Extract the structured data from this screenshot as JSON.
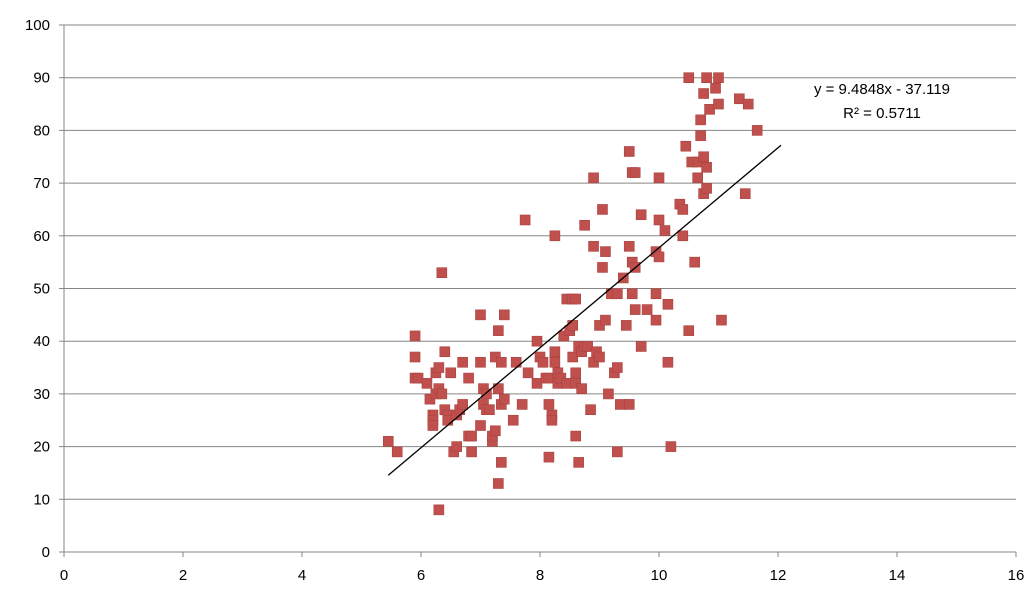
{
  "chart_data": {
    "type": "scatter",
    "title": "",
    "xlabel": "",
    "ylabel": "",
    "xlim": [
      0,
      16
    ],
    "ylim": [
      0,
      100
    ],
    "x_ticks": [
      "0",
      "2",
      "4",
      "6",
      "8",
      "10",
      "12",
      "14",
      "16"
    ],
    "y_ticks": [
      "0",
      "10",
      "20",
      "30",
      "40",
      "50",
      "60",
      "70",
      "80",
      "90",
      "100"
    ],
    "grid": "horizontal",
    "legend": "none",
    "marker_color": "#c0504d",
    "trendline": {
      "type": "linear",
      "slope": 9.4848,
      "intercept": -37.119,
      "x_range": [
        5.45,
        12.05
      ],
      "color": "#000000",
      "equation_label": "y = 9.4848x - 37.119",
      "r2_label": "R² = 0.5711"
    },
    "points": [
      [
        5.45,
        21
      ],
      [
        5.6,
        19
      ],
      [
        5.9,
        41
      ],
      [
        5.9,
        37
      ],
      [
        5.9,
        33
      ],
      [
        5.95,
        33
      ],
      [
        6.1,
        32
      ],
      [
        6.15,
        29
      ],
      [
        6.2,
        26
      ],
      [
        6.2,
        25
      ],
      [
        6.2,
        24
      ],
      [
        6.25,
        30
      ],
      [
        6.25,
        34
      ],
      [
        6.3,
        35
      ],
      [
        6.3,
        31
      ],
      [
        6.3,
        8
      ],
      [
        6.35,
        30
      ],
      [
        6.35,
        53
      ],
      [
        6.4,
        38
      ],
      [
        6.4,
        27
      ],
      [
        6.45,
        26
      ],
      [
        6.45,
        25
      ],
      [
        6.5,
        34
      ],
      [
        6.55,
        19
      ],
      [
        6.6,
        20
      ],
      [
        6.6,
        26
      ],
      [
        6.65,
        27
      ],
      [
        6.7,
        36
      ],
      [
        6.7,
        28
      ],
      [
        6.8,
        33
      ],
      [
        6.8,
        22
      ],
      [
        6.85,
        19
      ],
      [
        6.85,
        22
      ],
      [
        7.0,
        45
      ],
      [
        7.0,
        36
      ],
      [
        7.0,
        24
      ],
      [
        7.05,
        31
      ],
      [
        7.05,
        28
      ],
      [
        7.1,
        30
      ],
      [
        7.1,
        27
      ],
      [
        7.15,
        27
      ],
      [
        7.2,
        21
      ],
      [
        7.2,
        22
      ],
      [
        7.25,
        23
      ],
      [
        7.25,
        37
      ],
      [
        7.3,
        31
      ],
      [
        7.3,
        42
      ],
      [
        7.3,
        13
      ],
      [
        7.35,
        17
      ],
      [
        7.35,
        36
      ],
      [
        7.35,
        28
      ],
      [
        7.4,
        45
      ],
      [
        7.4,
        29
      ],
      [
        7.55,
        25
      ],
      [
        7.6,
        36
      ],
      [
        7.7,
        28
      ],
      [
        7.75,
        63
      ],
      [
        7.8,
        34
      ],
      [
        7.95,
        40
      ],
      [
        7.95,
        32
      ],
      [
        8.0,
        37
      ],
      [
        8.05,
        36
      ],
      [
        8.1,
        33
      ],
      [
        8.15,
        33
      ],
      [
        8.15,
        28
      ],
      [
        8.15,
        18
      ],
      [
        8.2,
        26
      ],
      [
        8.2,
        25
      ],
      [
        8.25,
        60
      ],
      [
        8.25,
        38
      ],
      [
        8.25,
        36
      ],
      [
        8.3,
        34
      ],
      [
        8.3,
        32
      ],
      [
        8.35,
        33
      ],
      [
        8.4,
        41
      ],
      [
        8.45,
        48
      ],
      [
        8.45,
        32
      ],
      [
        8.5,
        42
      ],
      [
        8.55,
        48
      ],
      [
        8.55,
        37
      ],
      [
        8.55,
        43
      ],
      [
        8.6,
        34
      ],
      [
        8.6,
        22
      ],
      [
        8.6,
        32
      ],
      [
        8.6,
        48
      ],
      [
        8.65,
        39
      ],
      [
        8.65,
        17
      ],
      [
        8.7,
        31
      ],
      [
        8.7,
        38
      ],
      [
        8.75,
        62
      ],
      [
        8.75,
        39
      ],
      [
        8.8,
        39
      ],
      [
        8.85,
        27
      ],
      [
        8.9,
        71
      ],
      [
        8.9,
        58
      ],
      [
        8.9,
        36
      ],
      [
        8.95,
        38
      ],
      [
        9.0,
        37
      ],
      [
        9.0,
        43
      ],
      [
        9.05,
        65
      ],
      [
        9.05,
        54
      ],
      [
        9.1,
        57
      ],
      [
        9.1,
        44
      ],
      [
        9.15,
        30
      ],
      [
        9.2,
        49
      ],
      [
        9.25,
        34
      ],
      [
        9.3,
        49
      ],
      [
        9.3,
        35
      ],
      [
        9.3,
        19
      ],
      [
        9.35,
        28
      ],
      [
        9.4,
        52
      ],
      [
        9.45,
        43
      ],
      [
        9.5,
        76
      ],
      [
        9.5,
        58
      ],
      [
        9.5,
        28
      ],
      [
        9.55,
        49
      ],
      [
        9.55,
        55
      ],
      [
        9.55,
        72
      ],
      [
        9.6,
        46
      ],
      [
        9.6,
        54
      ],
      [
        9.6,
        72
      ],
      [
        9.7,
        64
      ],
      [
        9.7,
        39
      ],
      [
        9.8,
        46
      ],
      [
        9.95,
        49
      ],
      [
        9.95,
        57
      ],
      [
        9.95,
        44
      ],
      [
        10.0,
        63
      ],
      [
        10.0,
        56
      ],
      [
        10.0,
        71
      ],
      [
        10.1,
        61
      ],
      [
        10.15,
        47
      ],
      [
        10.15,
        36
      ],
      [
        10.2,
        20
      ],
      [
        10.35,
        66
      ],
      [
        10.4,
        65
      ],
      [
        10.4,
        60
      ],
      [
        10.45,
        77
      ],
      [
        10.5,
        90
      ],
      [
        10.5,
        42
      ],
      [
        10.55,
        74
      ],
      [
        10.6,
        55
      ],
      [
        10.65,
        74
      ],
      [
        10.65,
        71
      ],
      [
        10.7,
        82
      ],
      [
        10.7,
        79
      ],
      [
        10.75,
        68
      ],
      [
        10.75,
        87
      ],
      [
        10.75,
        75
      ],
      [
        10.8,
        69
      ],
      [
        10.8,
        90
      ],
      [
        10.8,
        73
      ],
      [
        10.85,
        84
      ],
      [
        10.95,
        88
      ],
      [
        11.0,
        90
      ],
      [
        11.0,
        85
      ],
      [
        11.05,
        44
      ],
      [
        11.35,
        86
      ],
      [
        11.45,
        68
      ],
      [
        11.5,
        85
      ],
      [
        11.65,
        80
      ]
    ]
  }
}
